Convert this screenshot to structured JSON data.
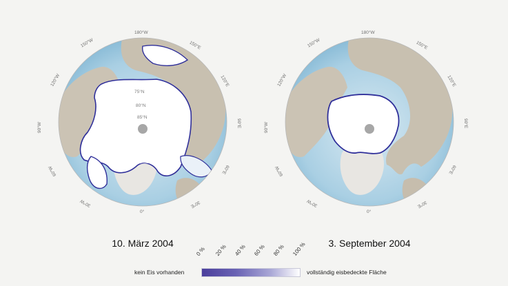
{
  "maps": [
    {
      "date": "10. März 2004",
      "lon_labels": {
        "top": "180°W",
        "top_left": "150°W",
        "top_right": "150°E",
        "upper_left": "120°W",
        "upper_right": "120°E",
        "left": "90°W",
        "right": "90°E",
        "lower_left": "60°W",
        "lower_right": "60°E",
        "bottom_left": "30°W",
        "bottom_right": "30°E",
        "bottom": "0°"
      },
      "lat_labels": [
        "75°N",
        "80°N",
        "85°N"
      ]
    },
    {
      "date": "3. September 2004",
      "lon_labels": {
        "top": "180°W",
        "top_left": "150°W",
        "top_right": "150°E",
        "upper_left": "120°W",
        "upper_right": "120°E",
        "left": "90°W",
        "right": "90°E",
        "lower_left": "60°W",
        "lower_right": "60°E",
        "bottom_left": "30°W",
        "bottom_right": "30°E",
        "bottom": "0°"
      },
      "lat_labels": []
    }
  ],
  "legend": {
    "left_label": "kein Eis vorhanden",
    "right_label": "vollständig eisbedeckte Fläche",
    "ticks": [
      "0 %",
      "20 %",
      "40 %",
      "60 %",
      "80 %",
      "100 %"
    ],
    "color_low": "#4b3f9c",
    "color_high": "#ffffff"
  },
  "colors": {
    "ocean": "#b9d6e6",
    "land": "#c9c1b2",
    "ice": "#ffffff",
    "ice_edge": "#2f2f9a"
  }
}
